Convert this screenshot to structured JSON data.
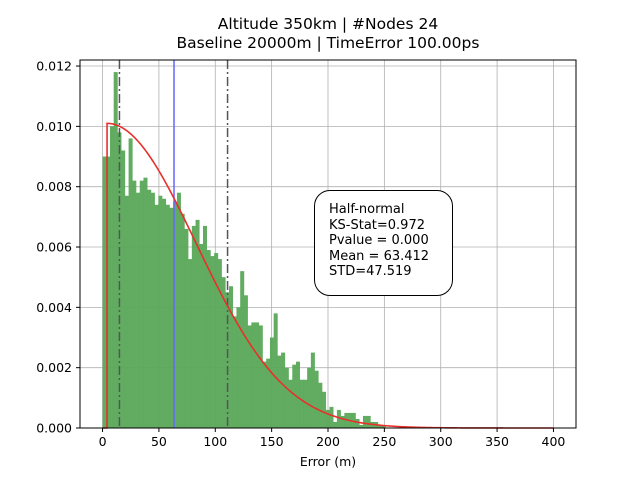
{
  "chart_data": {
    "type": "histogram",
    "title_line1": "Altitude 350km | #Nodes 24",
    "title_line2": "Baseline 20000m | TimeError 100.00ps",
    "xlabel": "Error (m)",
    "ylabel": "",
    "xlim": [
      -20,
      420
    ],
    "ylim": [
      0,
      0.0122
    ],
    "xticks": [
      0,
      50,
      100,
      150,
      200,
      250,
      300,
      350,
      400
    ],
    "yticks": [
      0.0,
      0.002,
      0.004,
      0.006,
      0.008,
      0.01,
      0.012
    ],
    "ytick_labels": [
      "0.000",
      "0.002",
      "0.004",
      "0.006",
      "0.008",
      "0.010",
      "0.012"
    ],
    "grid": true,
    "histogram": {
      "color": "#5aa85a",
      "bin_edges": [
        0,
        3.3,
        6.6,
        9.9,
        13.2,
        16.5,
        19.8,
        23.1,
        26.4,
        29.7,
        33,
        36.3,
        39.6,
        42.9,
        46.2,
        49.5,
        52.8,
        56.1,
        59.4,
        62.7,
        66,
        69.3,
        72.6,
        75.9,
        79.2,
        82.5,
        85.8,
        89.1,
        92.4,
        95.7,
        99,
        102.3,
        105.6,
        108.9,
        112.2,
        115.5,
        118.8,
        122.1,
        125.4,
        128.7,
        132,
        135.3,
        138.6,
        141.9,
        145.2,
        148.5,
        151.8,
        155.1,
        158.4,
        161.7,
        165,
        168.3,
        171.6,
        174.9,
        178.2,
        181.5,
        184.8,
        188.1,
        191.4,
        194.7,
        198,
        201.3,
        204.6,
        207.9,
        211.2,
        214.5,
        217.8,
        221.1,
        224.4,
        227.7,
        231,
        234.3,
        237.6,
        240.9,
        244.2,
        247.5,
        250.8
      ],
      "density": [
        0.009,
        0.009,
        0.01,
        0.0118,
        0.0098,
        0.0092,
        0.0077,
        0.0096,
        0.0082,
        0.0078,
        0.0082,
        0.0083,
        0.0079,
        0.0078,
        0.0074,
        0.0077,
        0.0076,
        0.0074,
        0.0073,
        0.0075,
        0.0078,
        0.0071,
        0.0066,
        0.0056,
        0.0067,
        0.0069,
        0.0061,
        0.0067,
        0.0059,
        0.0057,
        0.0058,
        0.0056,
        0.005,
        0.0045,
        0.0047,
        0.0037,
        0.004,
        0.0052,
        0.0044,
        0.0034,
        0.0035,
        0.0035,
        0.0034,
        0.0022,
        0.0023,
        0.003,
        0.0038,
        0.0024,
        0.0025,
        0.002,
        0.0016,
        0.0021,
        0.0022,
        0.0016,
        0.0016,
        0.002,
        0.0025,
        0.0019,
        0.0015,
        0.0012,
        0.0006,
        0.0007,
        0.0002,
        0.0006,
        0.0004,
        0.0005,
        0.0005,
        0.0005,
        0.0003,
        0.0001,
        0.0004,
        0.0004,
        0.0002,
        0.0002,
        0.0001,
        0.0001
      ]
    },
    "fit_curve": {
      "color": "#e8302a",
      "distribution": "half-normal",
      "loc": 4,
      "scale": 79,
      "x_start": 0,
      "x_end": 400
    },
    "vlines": [
      {
        "x": 63.4,
        "style": "solid",
        "color": "#6666ff"
      },
      {
        "x": 15.0,
        "style": "dashdot",
        "color": "#555555"
      },
      {
        "x": 110.9,
        "style": "dashdot",
        "color": "#555555"
      }
    ]
  },
  "stats_box": {
    "dist_name": "Half-normal",
    "ks_stat": "KS-Stat=0.972",
    "pvalue": "Pvalue = 0.000",
    "mean": "Mean = 63.412",
    "std": "STD=47.519"
  }
}
